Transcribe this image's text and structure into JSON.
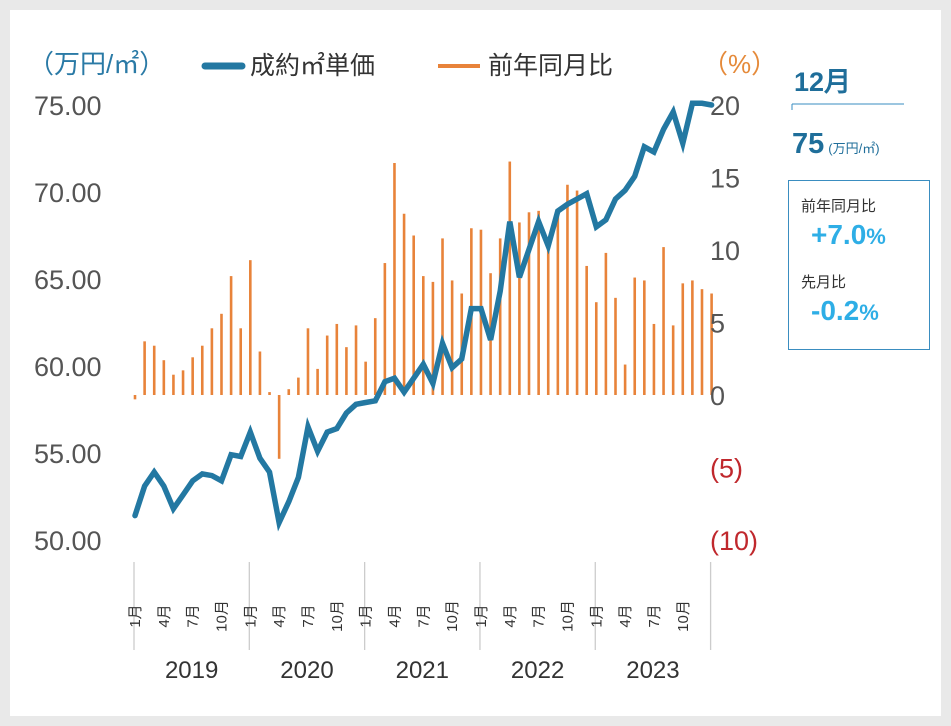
{
  "chart_data": {
    "type": "bar+line",
    "title": "",
    "left_axis": {
      "unit_label": "（万円/㎡）",
      "ticks": [
        "75.00",
        "70.00",
        "65.00",
        "60.00",
        "55.00",
        "50.00"
      ],
      "tick_values": [
        75,
        70,
        65,
        60,
        55,
        50
      ],
      "ylim": [
        50,
        75
      ]
    },
    "right_axis": {
      "unit_label": "（%）",
      "ticks": [
        "20",
        "15",
        "10",
        "5",
        "0",
        "(5)",
        "(10)"
      ],
      "tick_values": [
        20,
        15,
        10,
        5,
        0,
        -5,
        -10
      ],
      "ylim": [
        -10,
        20
      ]
    },
    "legend": {
      "line_label": "成約㎡単価",
      "bar_label": "前年同月比",
      "placement": "top"
    },
    "colors": {
      "line": "#2378a2",
      "bar": "#e8833a",
      "negative_tick": "#c0282d",
      "callout_value": "#2eaee6"
    },
    "month_labels": [
      "1月",
      "4月",
      "7月",
      "10月"
    ],
    "years": [
      "2019",
      "2020",
      "2021",
      "2022",
      "2023"
    ],
    "series": [
      {
        "name": "成約㎡単価",
        "axis": "left",
        "values": [
          51.4,
          53.1,
          53.9,
          53.1,
          51.8,
          52.6,
          53.4,
          53.8,
          53.7,
          53.4,
          54.9,
          54.8,
          56.2,
          54.7,
          53.9,
          51.0,
          52.2,
          53.6,
          56.5,
          55.1,
          56.2,
          56.4,
          57.3,
          57.8,
          57.9,
          58.0,
          59.1,
          59.3,
          58.5,
          59.3,
          60.1,
          59.0,
          61.3,
          59.9,
          60.4,
          63.3,
          63.3,
          61.5,
          64.3,
          68.3,
          65.1,
          66.7,
          68.3,
          66.9,
          68.9,
          69.3,
          69.6,
          69.9,
          68.0,
          68.4,
          69.6,
          70.1,
          70.9,
          72.6,
          72.3,
          73.6,
          74.6,
          72.8,
          75.1,
          75.1,
          75.0
        ]
      },
      {
        "name": "前年同月比",
        "axis": "right",
        "values": [
          -0.3,
          3.7,
          3.4,
          2.4,
          1.4,
          1.7,
          2.6,
          3.4,
          4.6,
          5.6,
          8.2,
          4.6,
          9.3,
          3.0,
          0.2,
          -4.4,
          0.4,
          1.2,
          4.6,
          1.8,
          4.1,
          4.9,
          3.3,
          4.8,
          2.3,
          5.3,
          9.1,
          16.0,
          12.5,
          11.0,
          8.2,
          7.8,
          10.8,
          7.9,
          7.0,
          11.5,
          11.4,
          8.4,
          10.8,
          16.1,
          11.9,
          12.6,
          12.7,
          10.6,
          12.6,
          14.5,
          14.1,
          8.9,
          6.4,
          9.8,
          6.7,
          2.1,
          8.1,
          7.9,
          4.9,
          10.2,
          4.8,
          7.7,
          7.9,
          7.3,
          7.0
        ]
      }
    ]
  },
  "callout": {
    "month": "12月",
    "value": "75",
    "value_unit": "(万円/㎡)",
    "yoy_label": "前年同月比",
    "yoy_value": "+7.0",
    "yoy_pct": "%",
    "mom_label": "先月比",
    "mom_value": "-0.2",
    "mom_pct": "%"
  }
}
